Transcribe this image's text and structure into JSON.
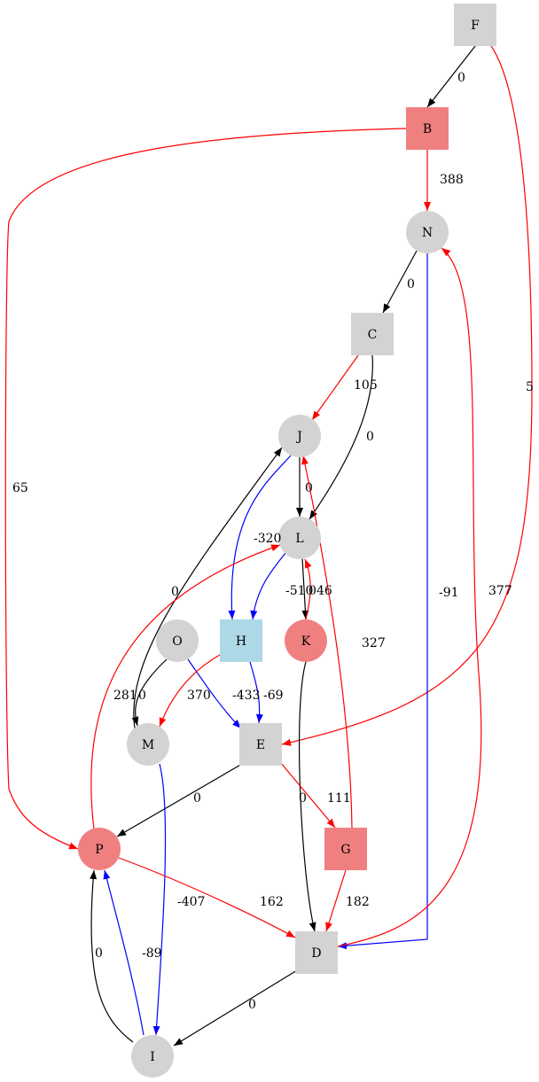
{
  "colors": {
    "gray": "#d3d3d3",
    "red": "#f08080",
    "blue": "#add8e6",
    "edge_black": "#000000",
    "edge_red": "#ff0000",
    "edge_blue": "#0000ff"
  },
  "nodes": [
    {
      "id": "F",
      "label": "F",
      "shape": "box",
      "color": "gray"
    },
    {
      "id": "B",
      "label": "B",
      "shape": "box",
      "color": "red"
    },
    {
      "id": "N",
      "label": "N",
      "shape": "circle",
      "color": "gray"
    },
    {
      "id": "C",
      "label": "C",
      "shape": "box",
      "color": "gray"
    },
    {
      "id": "J",
      "label": "J",
      "shape": "circle",
      "color": "gray"
    },
    {
      "id": "L",
      "label": "L",
      "shape": "circle",
      "color": "gray"
    },
    {
      "id": "O",
      "label": "O",
      "shape": "circle",
      "color": "gray"
    },
    {
      "id": "H",
      "label": "H",
      "shape": "box",
      "color": "blue"
    },
    {
      "id": "K",
      "label": "K",
      "shape": "circle",
      "color": "red"
    },
    {
      "id": "M",
      "label": "M",
      "shape": "circle",
      "color": "gray"
    },
    {
      "id": "E",
      "label": "E",
      "shape": "box",
      "color": "gray"
    },
    {
      "id": "P",
      "label": "P",
      "shape": "circle",
      "color": "red"
    },
    {
      "id": "G",
      "label": "G",
      "shape": "box",
      "color": "red"
    },
    {
      "id": "D",
      "label": "D",
      "shape": "box",
      "color": "gray"
    },
    {
      "id": "I",
      "label": "I",
      "shape": "circle",
      "color": "gray"
    }
  ],
  "edges": [
    {
      "from": "F",
      "to": "B",
      "label": "0",
      "color": "edge_black"
    },
    {
      "from": "F",
      "to": "E",
      "label": "5",
      "color": "edge_red"
    },
    {
      "from": "B",
      "to": "N",
      "label": "388",
      "color": "edge_red"
    },
    {
      "from": "B",
      "to": "P",
      "label": "65",
      "color": "edge_red"
    },
    {
      "from": "N",
      "to": "C",
      "label": "0",
      "color": "edge_black"
    },
    {
      "from": "N",
      "to": "D",
      "label": "-91",
      "color": "edge_blue"
    },
    {
      "from": "C",
      "to": "J",
      "label": "105",
      "color": "edge_red"
    },
    {
      "from": "C",
      "to": "L",
      "label": "0",
      "color": "edge_black"
    },
    {
      "from": "J",
      "to": "L",
      "label": "0",
      "color": "edge_black"
    },
    {
      "from": "J",
      "to": "H",
      "label": "-320",
      "color": "edge_blue"
    },
    {
      "from": "L",
      "to": "H",
      "label": "-510",
      "color": "edge_blue"
    },
    {
      "from": "L",
      "to": "K",
      "label": "0",
      "color": "edge_black"
    },
    {
      "from": "K",
      "to": "L",
      "label": "46",
      "color": "edge_red"
    },
    {
      "from": "M",
      "to": "J",
      "label": "0",
      "color": "edge_black"
    },
    {
      "from": "O",
      "to": "M",
      "label": "0",
      "color": "edge_black"
    },
    {
      "from": "O",
      "to": "E",
      "label": "-433",
      "color": "edge_blue"
    },
    {
      "from": "H",
      "to": "M",
      "label": "370",
      "color": "edge_red"
    },
    {
      "from": "H",
      "to": "E",
      "label": "-69",
      "color": "edge_blue"
    },
    {
      "from": "P",
      "to": "L",
      "label": "281",
      "color": "edge_red"
    },
    {
      "from": "K",
      "to": "D",
      "label": "0",
      "color": "edge_black"
    },
    {
      "from": "G",
      "to": "J",
      "label": "327",
      "color": "edge_red"
    },
    {
      "from": "E",
      "to": "P",
      "label": "0",
      "color": "edge_black"
    },
    {
      "from": "E",
      "to": "G",
      "label": "111",
      "color": "edge_red"
    },
    {
      "from": "M",
      "to": "I",
      "label": "-407",
      "color": "edge_blue"
    },
    {
      "from": "P",
      "to": "D",
      "label": "162",
      "color": "edge_red"
    },
    {
      "from": "G",
      "to": "D",
      "label": "182",
      "color": "edge_red"
    },
    {
      "from": "D",
      "to": "N",
      "label": "377",
      "color": "edge_red"
    },
    {
      "from": "D",
      "to": "I",
      "label": "0",
      "color": "edge_black"
    },
    {
      "from": "I",
      "to": "P",
      "label": "-89",
      "color": "edge_blue"
    },
    {
      "from": "I",
      "to": "P",
      "label": "0",
      "color": "edge_black"
    }
  ]
}
